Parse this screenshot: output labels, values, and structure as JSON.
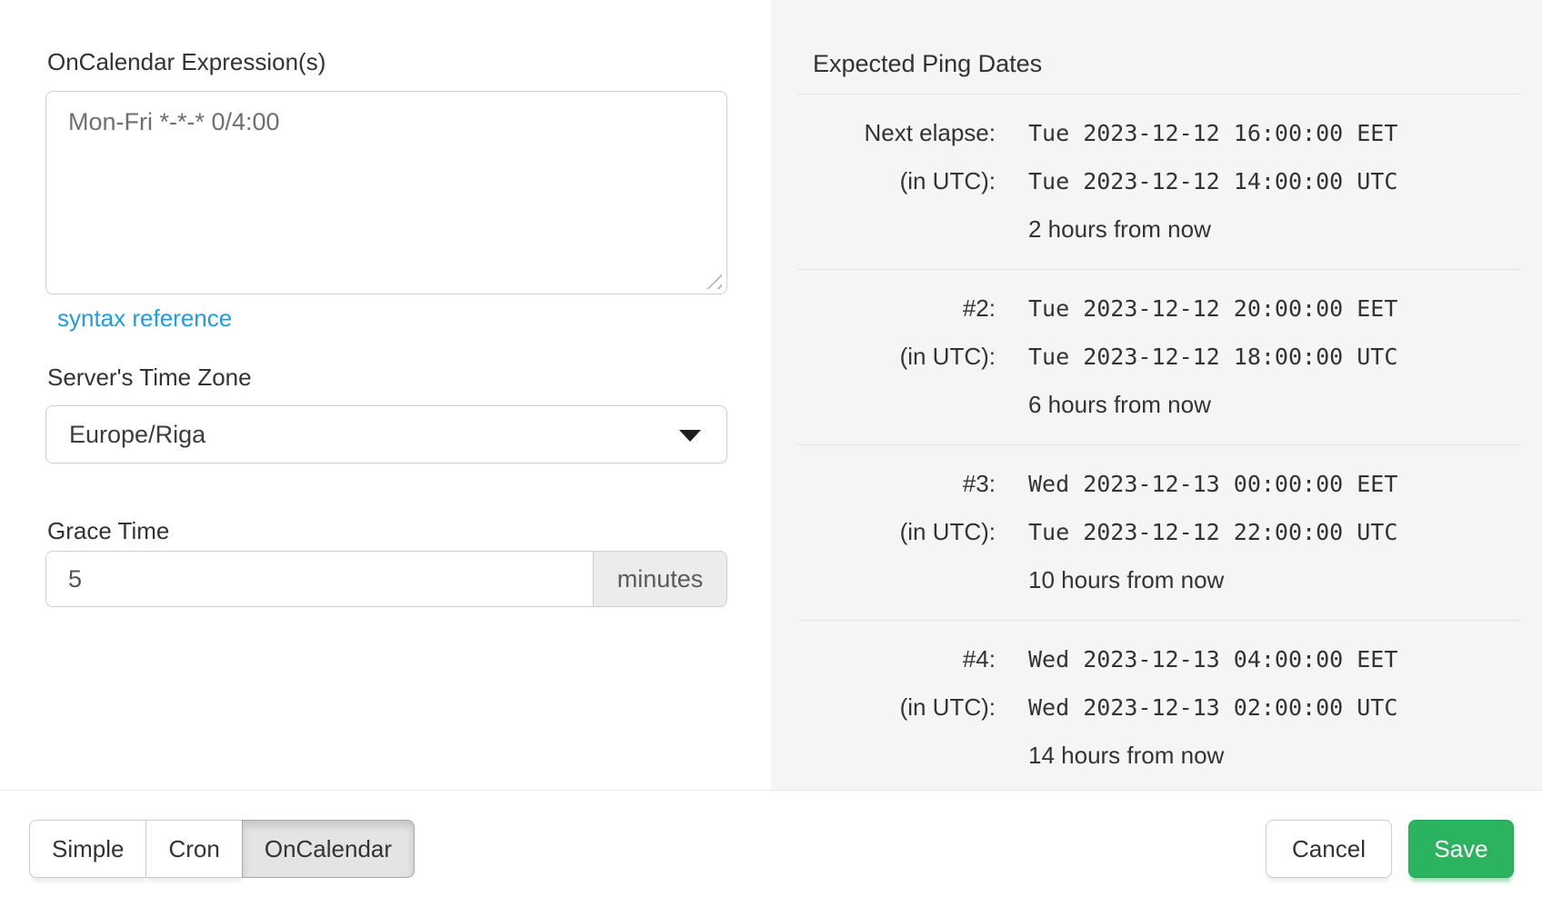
{
  "form": {
    "expression_label": "OnCalendar Expression(s)",
    "expression_value": "Mon-Fri *-*-* 0/4:00",
    "syntax_link_label": "syntax reference",
    "timezone_label": "Server's Time Zone",
    "timezone_value": "Europe/Riga",
    "grace_label": "Grace Time",
    "grace_value": "5",
    "grace_unit": "minutes"
  },
  "panel": {
    "title": "Expected Ping Dates",
    "groups": [
      {
        "label": "Next elapse:",
        "local": "Tue 2023-12-12 16:00:00 EET",
        "utc_label": "(in UTC):",
        "utc": "Tue 2023-12-12 14:00:00 UTC",
        "relative": "2 hours from now"
      },
      {
        "label": "#2:",
        "local": "Tue 2023-12-12 20:00:00 EET",
        "utc_label": "(in UTC):",
        "utc": "Tue 2023-12-12 18:00:00 UTC",
        "relative": "6 hours from now"
      },
      {
        "label": "#3:",
        "local": "Wed 2023-12-13 00:00:00 EET",
        "utc_label": "(in UTC):",
        "utc": "Tue 2023-12-12 22:00:00 UTC",
        "relative": "10 hours from now"
      },
      {
        "label": "#4:",
        "local": "Wed 2023-12-13 04:00:00 EET",
        "utc_label": "(in UTC):",
        "utc": "Wed 2023-12-13 02:00:00 UTC",
        "relative": "14 hours from now"
      }
    ]
  },
  "footer": {
    "mode_buttons": [
      {
        "label": "Simple"
      },
      {
        "label": "Cron"
      },
      {
        "label": "OnCalendar"
      }
    ],
    "cancel_label": "Cancel",
    "save_label": "Save"
  },
  "colors": {
    "accent_green": "#2bb35f",
    "link_blue": "#1e9be9",
    "panel_bg": "#f5f5f5",
    "active_mode_bg": "#e4e4e4"
  }
}
